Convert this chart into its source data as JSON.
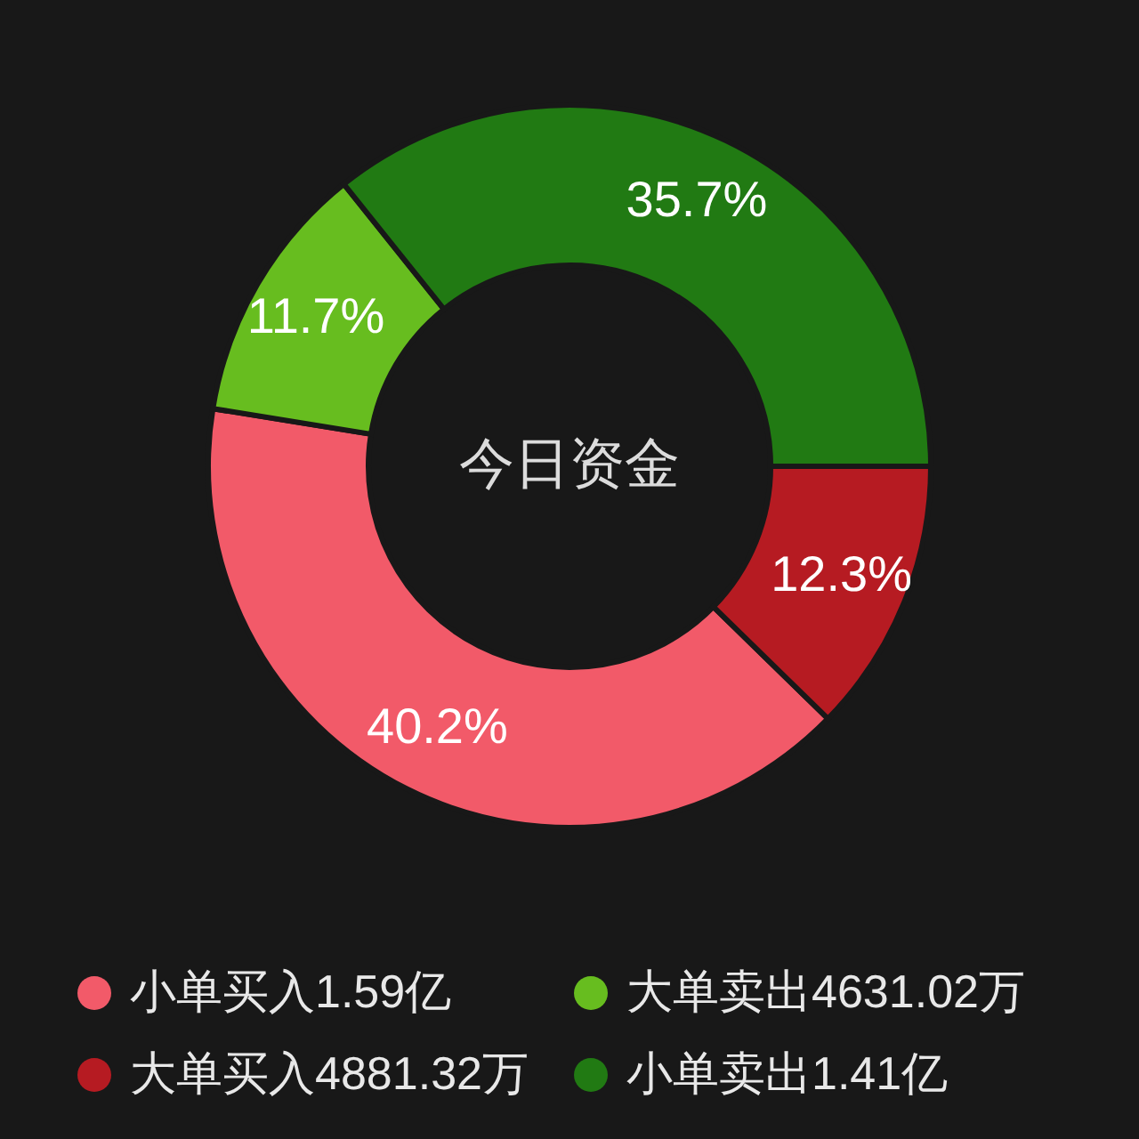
{
  "chart_data": {
    "type": "donut",
    "title": "今日资金",
    "categories": [
      "小单买入1.59亿",
      "大单卖出4631.02万",
      "大单买入4881.32万",
      "小单卖出1.41亿"
    ],
    "values": [
      40.2,
      11.7,
      12.3,
      35.7
    ],
    "colors": [
      "#f25a69",
      "#67bd1f",
      "#b61b22",
      "#217a13"
    ],
    "value_labels": [
      "40.2%",
      "11.7%",
      "12.3%",
      "35.7%"
    ],
    "legend": "bottom"
  }
}
